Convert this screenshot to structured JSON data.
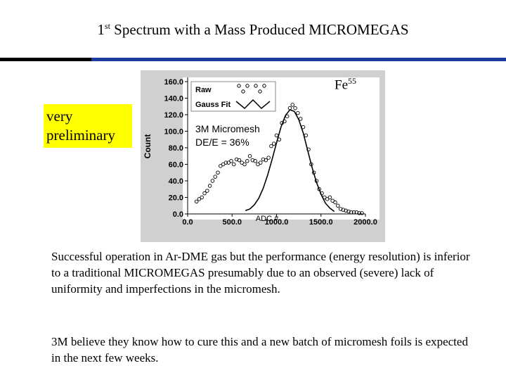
{
  "title": {
    "prefix": "1",
    "sup": "st",
    "text": " Spectrum with a Mass Produced MICROMEGAS"
  },
  "sticker": "very preliminary",
  "fe_label": {
    "base": "Fe",
    "sup": "55"
  },
  "colors": {
    "accent": "#1a3a9c",
    "sticker": "#ffff00",
    "plot_bg": "#ffffff",
    "frame_bg": "#d0d0d0"
  },
  "paragraphs": [
    "Successful operation in Ar-DME gas but the performance (energy resolution) is inferior to a traditional MICROMEGAS presumably due to an observed (severe) lack of uniformity and imperfections in the micromesh.",
    "3M believe they know how to cure this and a new batch of micromesh foils is expected in the next few weeks."
  ],
  "chart_data": {
    "type": "scatter",
    "ylabel": "Count",
    "xlabel": "ADC #",
    "xlim": [
      0,
      2000
    ],
    "ylim": [
      0,
      160
    ],
    "xticks": [
      "0.0",
      "500.0",
      "1000.0",
      "1500.0",
      "2000.0"
    ],
    "yticks": [
      "0.0",
      "20.0",
      "40.0",
      "60.0",
      "80.0",
      "100.0",
      "120.0",
      "140.0",
      "160.0"
    ],
    "legend": {
      "placement": "top-left",
      "entries": [
        "Raw",
        "Gauss Fit"
      ]
    },
    "annotations": [
      "3M Micromesh",
      "DE/E = 36%"
    ],
    "series": [
      {
        "name": "Raw",
        "style": "points",
        "x": [
          100,
          130,
          160,
          190,
          220,
          250,
          280,
          310,
          340,
          370,
          400,
          430,
          460,
          490,
          520,
          550,
          580,
          610,
          640,
          670,
          700,
          730,
          760,
          790,
          820,
          850,
          880,
          910,
          940,
          970,
          1000,
          1030,
          1060,
          1090,
          1120,
          1150,
          1180,
          1210,
          1240,
          1270,
          1300,
          1330,
          1360,
          1390,
          1420,
          1450,
          1480,
          1510,
          1540,
          1570,
          1600,
          1630,
          1660,
          1690,
          1720,
          1750,
          1780,
          1810,
          1840,
          1870,
          1900,
          1930,
          1960
        ],
        "y": [
          15,
          18,
          20,
          25,
          28,
          34,
          40,
          45,
          50,
          58,
          60,
          62,
          62,
          64,
          60,
          66,
          65,
          62,
          60,
          64,
          70,
          65,
          64,
          60,
          62,
          66,
          65,
          68,
          82,
          85,
          95,
          90,
          110,
          112,
          118,
          128,
          132,
          128,
          122,
          115,
          105,
          95,
          78,
          60,
          50,
          40,
          30,
          25,
          20,
          18,
          20,
          16,
          14,
          10,
          6,
          5,
          4,
          3,
          2,
          2,
          2,
          1,
          1
        ]
      },
      {
        "name": "Gauss Fit",
        "style": "line",
        "x": [
          650,
          700,
          750,
          800,
          850,
          900,
          950,
          1000,
          1050,
          1100,
          1150,
          1200,
          1250,
          1300,
          1350,
          1400,
          1450,
          1500,
          1550,
          1600,
          1650
        ],
        "y": [
          4,
          6,
          11,
          19,
          31,
          47,
          66,
          86,
          105,
          119,
          126,
          124,
          114,
          98,
          77,
          56,
          38,
          24,
          13,
          7,
          3
        ]
      }
    ]
  }
}
